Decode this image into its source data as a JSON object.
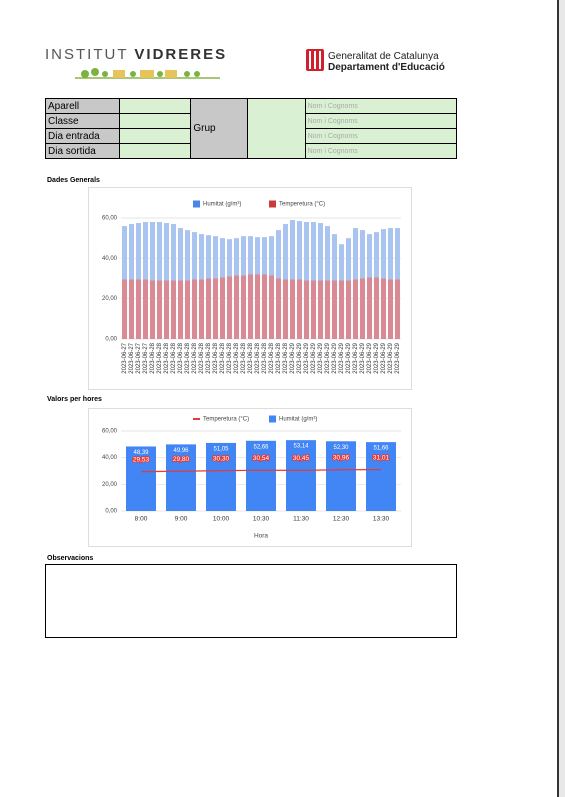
{
  "header": {
    "school": "INSTITUT",
    "school_name": "VIDRERES",
    "gov": "Generalitat de Catalunya",
    "dept": "Departament d'Educació"
  },
  "table": {
    "rows": [
      [
        "Aparell",
        "Nom i Cognoms"
      ],
      [
        "Classe",
        "Nom i Cognoms"
      ],
      [
        "Dia entrada",
        "Nom i Cognoms"
      ],
      [
        "Dia sortida",
        "Nom i Cognoms"
      ]
    ],
    "group": "Grup"
  },
  "sections": {
    "general": "Dades Generals",
    "hourly": "Valors per hores",
    "notes": "Observacions"
  },
  "chart_data": [
    {
      "type": "bar",
      "categories": [
        "2023-06-27",
        "2023-06-27",
        "2023-06-27",
        "2023-06-27",
        "2023-06-28",
        "2023-06-28",
        "2023-06-28",
        "2023-06-28",
        "2023-06-28",
        "2023-06-28",
        "2023-06-28",
        "2023-06-28",
        "2023-06-28",
        "2023-06-28",
        "2023-06-28",
        "2023-06-28",
        "2023-06-28",
        "2023-06-28",
        "2023-06-28",
        "2023-06-28",
        "2023-06-28",
        "2023-06-28",
        "2023-06-28",
        "2023-06-28",
        "2023-06-29",
        "2023-06-29",
        "2023-06-29",
        "2023-06-29",
        "2023-06-29",
        "2023-06-29",
        "2023-06-29",
        "2023-06-29",
        "2023-06-29",
        "2023-06-29",
        "2023-06-29",
        "2023-06-29",
        "2023-06-29",
        "2023-06-29",
        "2023-06-29",
        "2023-06-29"
      ],
      "series": [
        {
          "name": "Humitat (g/m³)",
          "color": "#a9c4f0",
          "values": [
            56,
            57,
            57.5,
            58,
            58,
            58,
            57.5,
            57,
            55,
            54,
            53,
            52,
            51.5,
            51,
            50,
            49.5,
            50,
            51,
            51,
            50.5,
            50.5,
            51,
            54,
            57,
            59,
            58.5,
            58,
            58,
            57.5,
            56,
            52,
            47,
            50,
            55,
            54,
            52,
            53,
            54.5,
            55,
            55
          ]
        },
        {
          "name": "Temperetura (°C)",
          "color": "#d98a94",
          "values": [
            29.5,
            29.5,
            29.5,
            29.5,
            29,
            29,
            29,
            29,
            29,
            29,
            29.5,
            29.5,
            30,
            30,
            30.5,
            31,
            31.5,
            31.5,
            32,
            32,
            32,
            31.5,
            30,
            29.5,
            29.5,
            29.5,
            29,
            29,
            29,
            29,
            29,
            29,
            29,
            29.5,
            30,
            30.5,
            30.5,
            30,
            29.5,
            29.5
          ]
        }
      ],
      "ylim": [
        0,
        60
      ],
      "yticks": [
        {
          "value": 0,
          "label": "0,00"
        },
        {
          "value": 20,
          "label": "20,00"
        },
        {
          "value": 40,
          "label": "40,00"
        },
        {
          "value": 60,
          "label": "60,00"
        }
      ],
      "grid": true
    },
    {
      "type": "combo",
      "categories": [
        "8:00",
        "9:00",
        "10:00",
        "10:30",
        "11:30",
        "12:30",
        "13:30"
      ],
      "x_label": "Hora",
      "series": [
        {
          "name": "Temperetura (°C)",
          "type": "line",
          "color": "#e03c3c",
          "values": [
            29.53,
            29.8,
            30.3,
            30.54,
            30.45,
            30.96,
            31.01
          ],
          "value_labels": [
            "29,53",
            "29,80",
            "30,30",
            "30,54",
            "30,45",
            "30,96",
            "31,01"
          ]
        },
        {
          "name": "Humitat (g/m³)",
          "type": "bar",
          "color": "#4285f4",
          "values": [
            48.39,
            49.96,
            51.05,
            52.66,
            53.14,
            52.3,
            51.66
          ],
          "value_labels": [
            "48,39",
            "49,96",
            "51,05",
            "52,66",
            "53,14",
            "52,30",
            "51,66"
          ]
        }
      ],
      "ylim": [
        0,
        60
      ],
      "yticks": [
        {
          "value": 0,
          "label": "0,00"
        },
        {
          "value": 20,
          "label": "20,00"
        },
        {
          "value": 40,
          "label": "40,00"
        },
        {
          "value": 60,
          "label": "60,00"
        }
      ],
      "grid": true
    }
  ]
}
